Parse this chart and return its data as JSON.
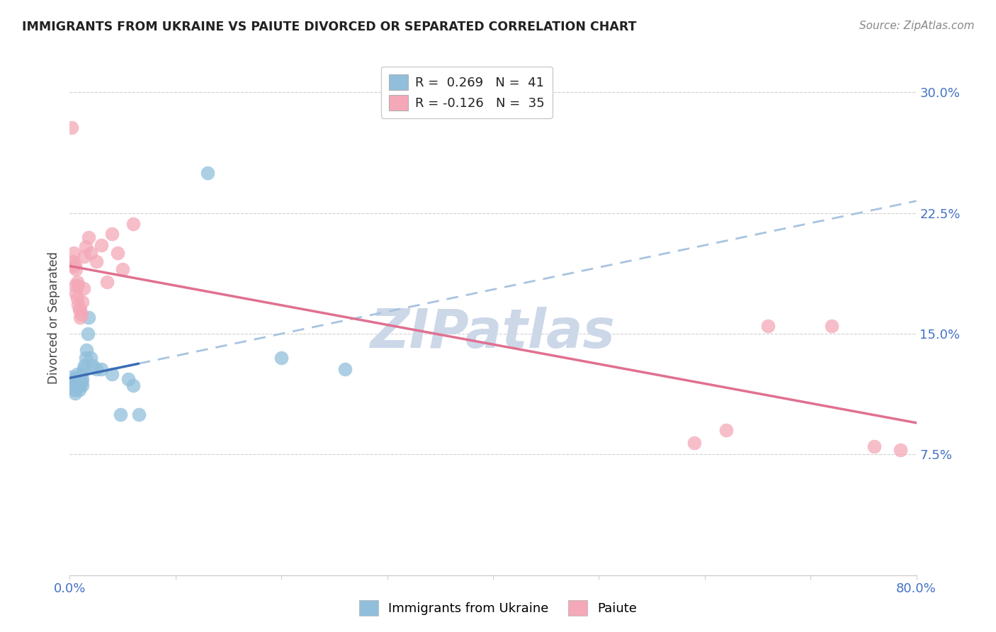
{
  "title": "IMMIGRANTS FROM UKRAINE VS PAIUTE DIVORCED OR SEPARATED CORRELATION CHART",
  "source": "Source: ZipAtlas.com",
  "ylabel": "Divorced or Separated",
  "xlim": [
    0.0,
    0.8
  ],
  "ylim": [
    0.0,
    0.32
  ],
  "x_tick_positions": [
    0.0,
    0.1,
    0.2,
    0.3,
    0.4,
    0.5,
    0.6,
    0.7,
    0.8
  ],
  "x_tick_labels": [
    "0.0%",
    "",
    "",
    "",
    "",
    "",
    "",
    "",
    "80.0%"
  ],
  "y_tick_positions": [
    0.075,
    0.15,
    0.225,
    0.3
  ],
  "y_tick_labels_right": [
    "7.5%",
    "15.0%",
    "22.5%",
    "30.0%"
  ],
  "ukraine_x": [
    0.001,
    0.002,
    0.003,
    0.004,
    0.004,
    0.005,
    0.005,
    0.005,
    0.006,
    0.006,
    0.007,
    0.007,
    0.007,
    0.008,
    0.008,
    0.009,
    0.009,
    0.01,
    0.01,
    0.011,
    0.011,
    0.012,
    0.012,
    0.013,
    0.014,
    0.015,
    0.016,
    0.017,
    0.018,
    0.02,
    0.022,
    0.025,
    0.03,
    0.04,
    0.048,
    0.055,
    0.06,
    0.065,
    0.13,
    0.2,
    0.26
  ],
  "ukraine_y": [
    0.118,
    0.123,
    0.118,
    0.115,
    0.12,
    0.113,
    0.118,
    0.122,
    0.115,
    0.12,
    0.118,
    0.12,
    0.125,
    0.118,
    0.122,
    0.115,
    0.12,
    0.118,
    0.122,
    0.12,
    0.125,
    0.118,
    0.122,
    0.128,
    0.13,
    0.135,
    0.14,
    0.15,
    0.16,
    0.135,
    0.13,
    0.128,
    0.128,
    0.125,
    0.1,
    0.122,
    0.118,
    0.1,
    0.25,
    0.135,
    0.128
  ],
  "paiute_x": [
    0.002,
    0.003,
    0.004,
    0.004,
    0.005,
    0.005,
    0.006,
    0.006,
    0.007,
    0.007,
    0.008,
    0.008,
    0.009,
    0.01,
    0.01,
    0.011,
    0.012,
    0.013,
    0.014,
    0.015,
    0.018,
    0.02,
    0.025,
    0.03,
    0.035,
    0.04,
    0.045,
    0.05,
    0.06,
    0.59,
    0.62,
    0.66,
    0.72,
    0.76,
    0.785
  ],
  "paiute_y": [
    0.278,
    0.195,
    0.192,
    0.2,
    0.18,
    0.193,
    0.175,
    0.19,
    0.172,
    0.182,
    0.168,
    0.18,
    0.165,
    0.16,
    0.165,
    0.162,
    0.17,
    0.178,
    0.198,
    0.204,
    0.21,
    0.2,
    0.195,
    0.205,
    0.182,
    0.212,
    0.2,
    0.19,
    0.218,
    0.082,
    0.09,
    0.155,
    0.155,
    0.08,
    0.078
  ],
  "ukraine_color": "#91bfdb",
  "paiute_color": "#f4a8b8",
  "ukraine_line_color": "#3a6db5",
  "paiute_line_color": "#e07090",
  "dashed_line_color": "#a8c4e0",
  "grid_color": "#d0d0d0",
  "title_color": "#222222",
  "tick_color": "#4472c4",
  "watermark_text": "ZIPatlas",
  "watermark_color": "#ccd8e8",
  "legend_R1": "R=  0.269",
  "legend_N1": "N =  41",
  "legend_R2": "R = -0.126",
  "legend_N2": "N =  35",
  "legend1_label": "Immigrants from Ukraine",
  "legend2_label": "Paiute",
  "ukraine_line_x": [
    0.0,
    0.065
  ],
  "dashed_line_x": [
    0.065,
    0.8
  ],
  "paiute_line_x": [
    0.0,
    0.8
  ]
}
